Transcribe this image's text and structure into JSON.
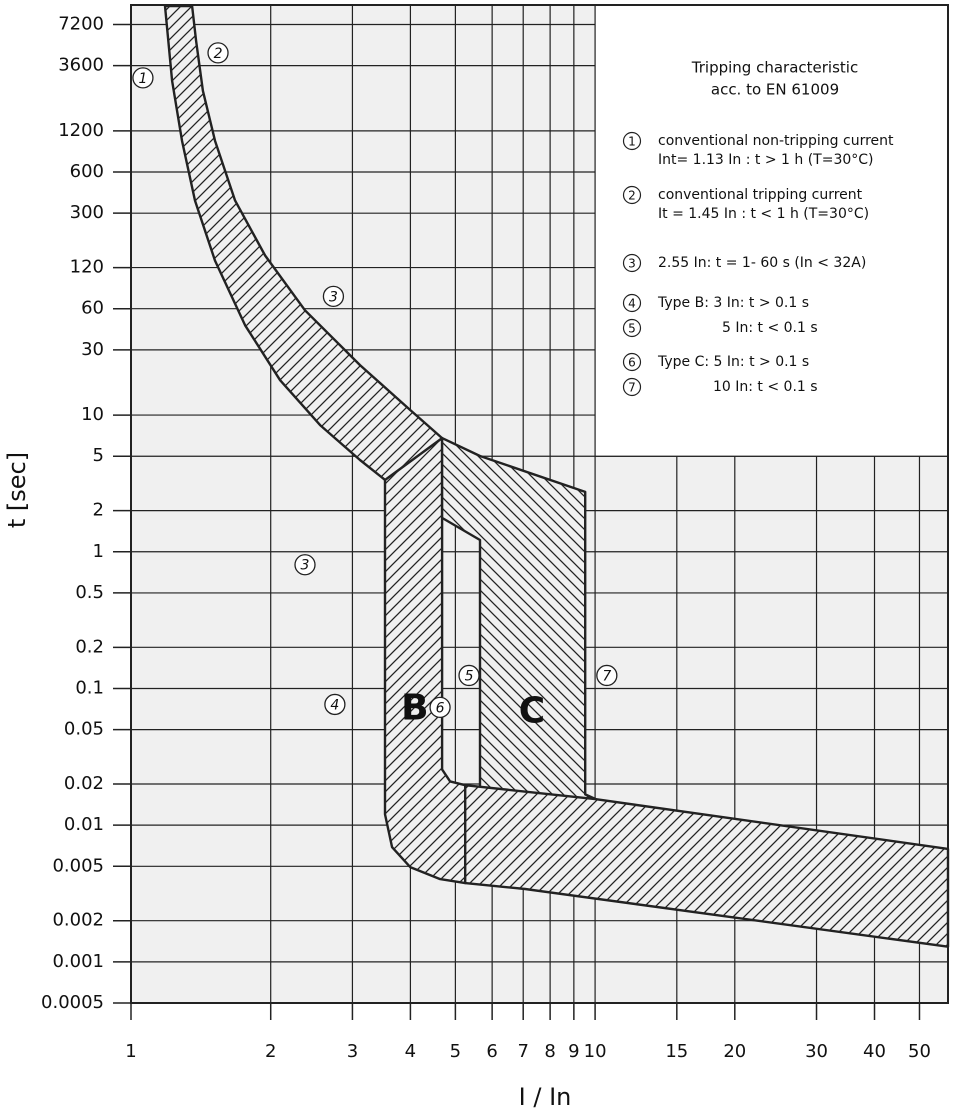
{
  "chart_data": {
    "type": "area",
    "xlabel": "I / In",
    "ylabel": "t [sec]",
    "xscale": "log",
    "yscale": "log",
    "grid": true,
    "xlim": [
      1,
      57.6
    ],
    "ylim": [
      0.0005,
      10000
    ],
    "xticks": [
      1,
      2,
      3,
      4,
      5,
      6,
      7,
      8,
      9,
      10,
      15,
      20,
      30,
      40,
      50
    ],
    "yticks": [
      7200,
      3600,
      1200,
      600,
      300,
      120,
      60,
      30,
      10,
      5,
      2,
      1,
      0.5,
      0.2,
      0.1,
      0.05,
      0.02,
      0.01,
      0.005,
      0.002,
      0.001,
      0.0005
    ],
    "series": [
      {
        "color": "#222222",
        "hatch": "/",
        "x": [
          1.354,
          1.381,
          1.429,
          1.517,
          1.676,
          1.945,
          2.371,
          3.115,
          3.995,
          4.68,
          4.68,
          3.8,
          3.115,
          2.555,
          2.095,
          1.761,
          1.517,
          1.374,
          1.288,
          1.226,
          1.184
        ],
        "values": [
          9840,
          5460,
          2356,
          1017,
          371,
          147,
          58.4,
          23.2,
          10.9,
          6.79,
          1.77,
          2.74,
          4.69,
          8.45,
          18.0,
          45.4,
          135,
          371,
          1017,
          2790,
          9840
        ]
      },
      {
        "color": "#222222",
        "hatch": "/",
        "x": [
          3.527,
          4.68,
          4.68,
          4.87,
          5.25,
          5.25,
          4.634,
          3.995,
          3.652,
          3.527
        ],
        "values": [
          3.35,
          6.79,
          0.0256,
          0.0209,
          0.0196,
          0.00377,
          0.00403,
          0.00493,
          0.0069,
          0.012
        ]
      },
      {
        "color": "#222222",
        "hatch": "\\",
        "x": [
          4.68,
          5.65,
          9.52,
          9.52,
          10.25,
          10.25,
          7.07,
          6.24,
          5.8,
          5.65,
          5.65,
          4.68
        ],
        "values": [
          6.79,
          5.02,
          2.74,
          0.0168,
          0.015,
          0.00341,
          0.00353,
          0.00439,
          0.0069,
          0.0111,
          1.22,
          1.77
        ]
      },
      {
        "color": "#222222",
        "hatch": "/",
        "x": [
          5.25,
          10,
          57.6,
          57.6,
          7.07,
          5.25
        ],
        "values": [
          0.0196,
          0.0155,
          0.0067,
          0.00129,
          0.00341,
          0.00377
        ]
      }
    ],
    "annotations": [
      {
        "text": "1",
        "circled": true,
        "x": 1.061,
        "y": 2930
      },
      {
        "text": "2",
        "circled": true,
        "x": 1.54,
        "y": 4465
      },
      {
        "text": "3",
        "circled": true,
        "x": 2.73,
        "y": 73.9
      },
      {
        "text": "3",
        "circled": true,
        "x": 2.371,
        "y": 0.804
      },
      {
        "text": "4",
        "circled": true,
        "x": 2.75,
        "y": 0.0764
      },
      {
        "text": "5",
        "circled": true,
        "x": 5.35,
        "y": 0.1245
      },
      {
        "text": "6",
        "circled": true,
        "x": 4.634,
        "y": 0.0727
      },
      {
        "text": "7",
        "circled": true,
        "x": 10.6,
        "y": 0.1245
      },
      {
        "text": "B",
        "circled": false,
        "x": 4.09,
        "y": 0.0703
      },
      {
        "text": "C",
        "circled": false,
        "x": 7.31,
        "y": 0.0668
      }
    ],
    "legend": {
      "title": [
        "Tripping characteristic",
        "acc. to EN 61009"
      ],
      "items": [
        {
          "marker": "1",
          "lines": [
            "conventional non-tripping current",
            "Int= 1.13 In : t > 1 h   (T=30°C)"
          ]
        },
        {
          "marker": "2",
          "lines": [
            "conventional tripping current",
            "It = 1.45 In : t < 1 h   (T=30°C)"
          ]
        },
        {
          "marker": "3",
          "lines": [
            "2.55 In: t = 1- 60 s (In < 32A)"
          ]
        },
        {
          "marker": "4",
          "lines": [
            "Type B: 3 In: t > 0.1 s"
          ]
        },
        {
          "marker": "5",
          "lines": [
            "5 In: t < 0.1 s"
          ]
        },
        {
          "marker": "6",
          "lines": [
            "Type C: 5 In: t > 0.1 s"
          ]
        },
        {
          "marker": "7",
          "lines": [
            "10 In: t < 0.1 s"
          ]
        }
      ]
    }
  }
}
